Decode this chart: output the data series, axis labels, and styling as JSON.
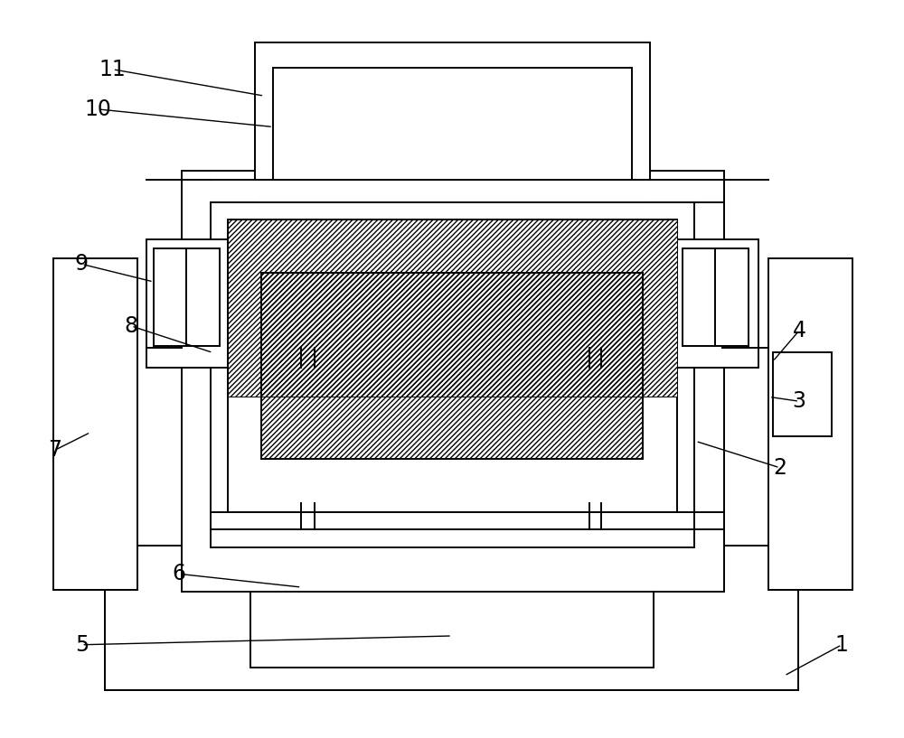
{
  "bg_color": "#ffffff",
  "lc": "#000000",
  "lw": 1.4,
  "fig_w": 10.0,
  "fig_h": 8.17
}
